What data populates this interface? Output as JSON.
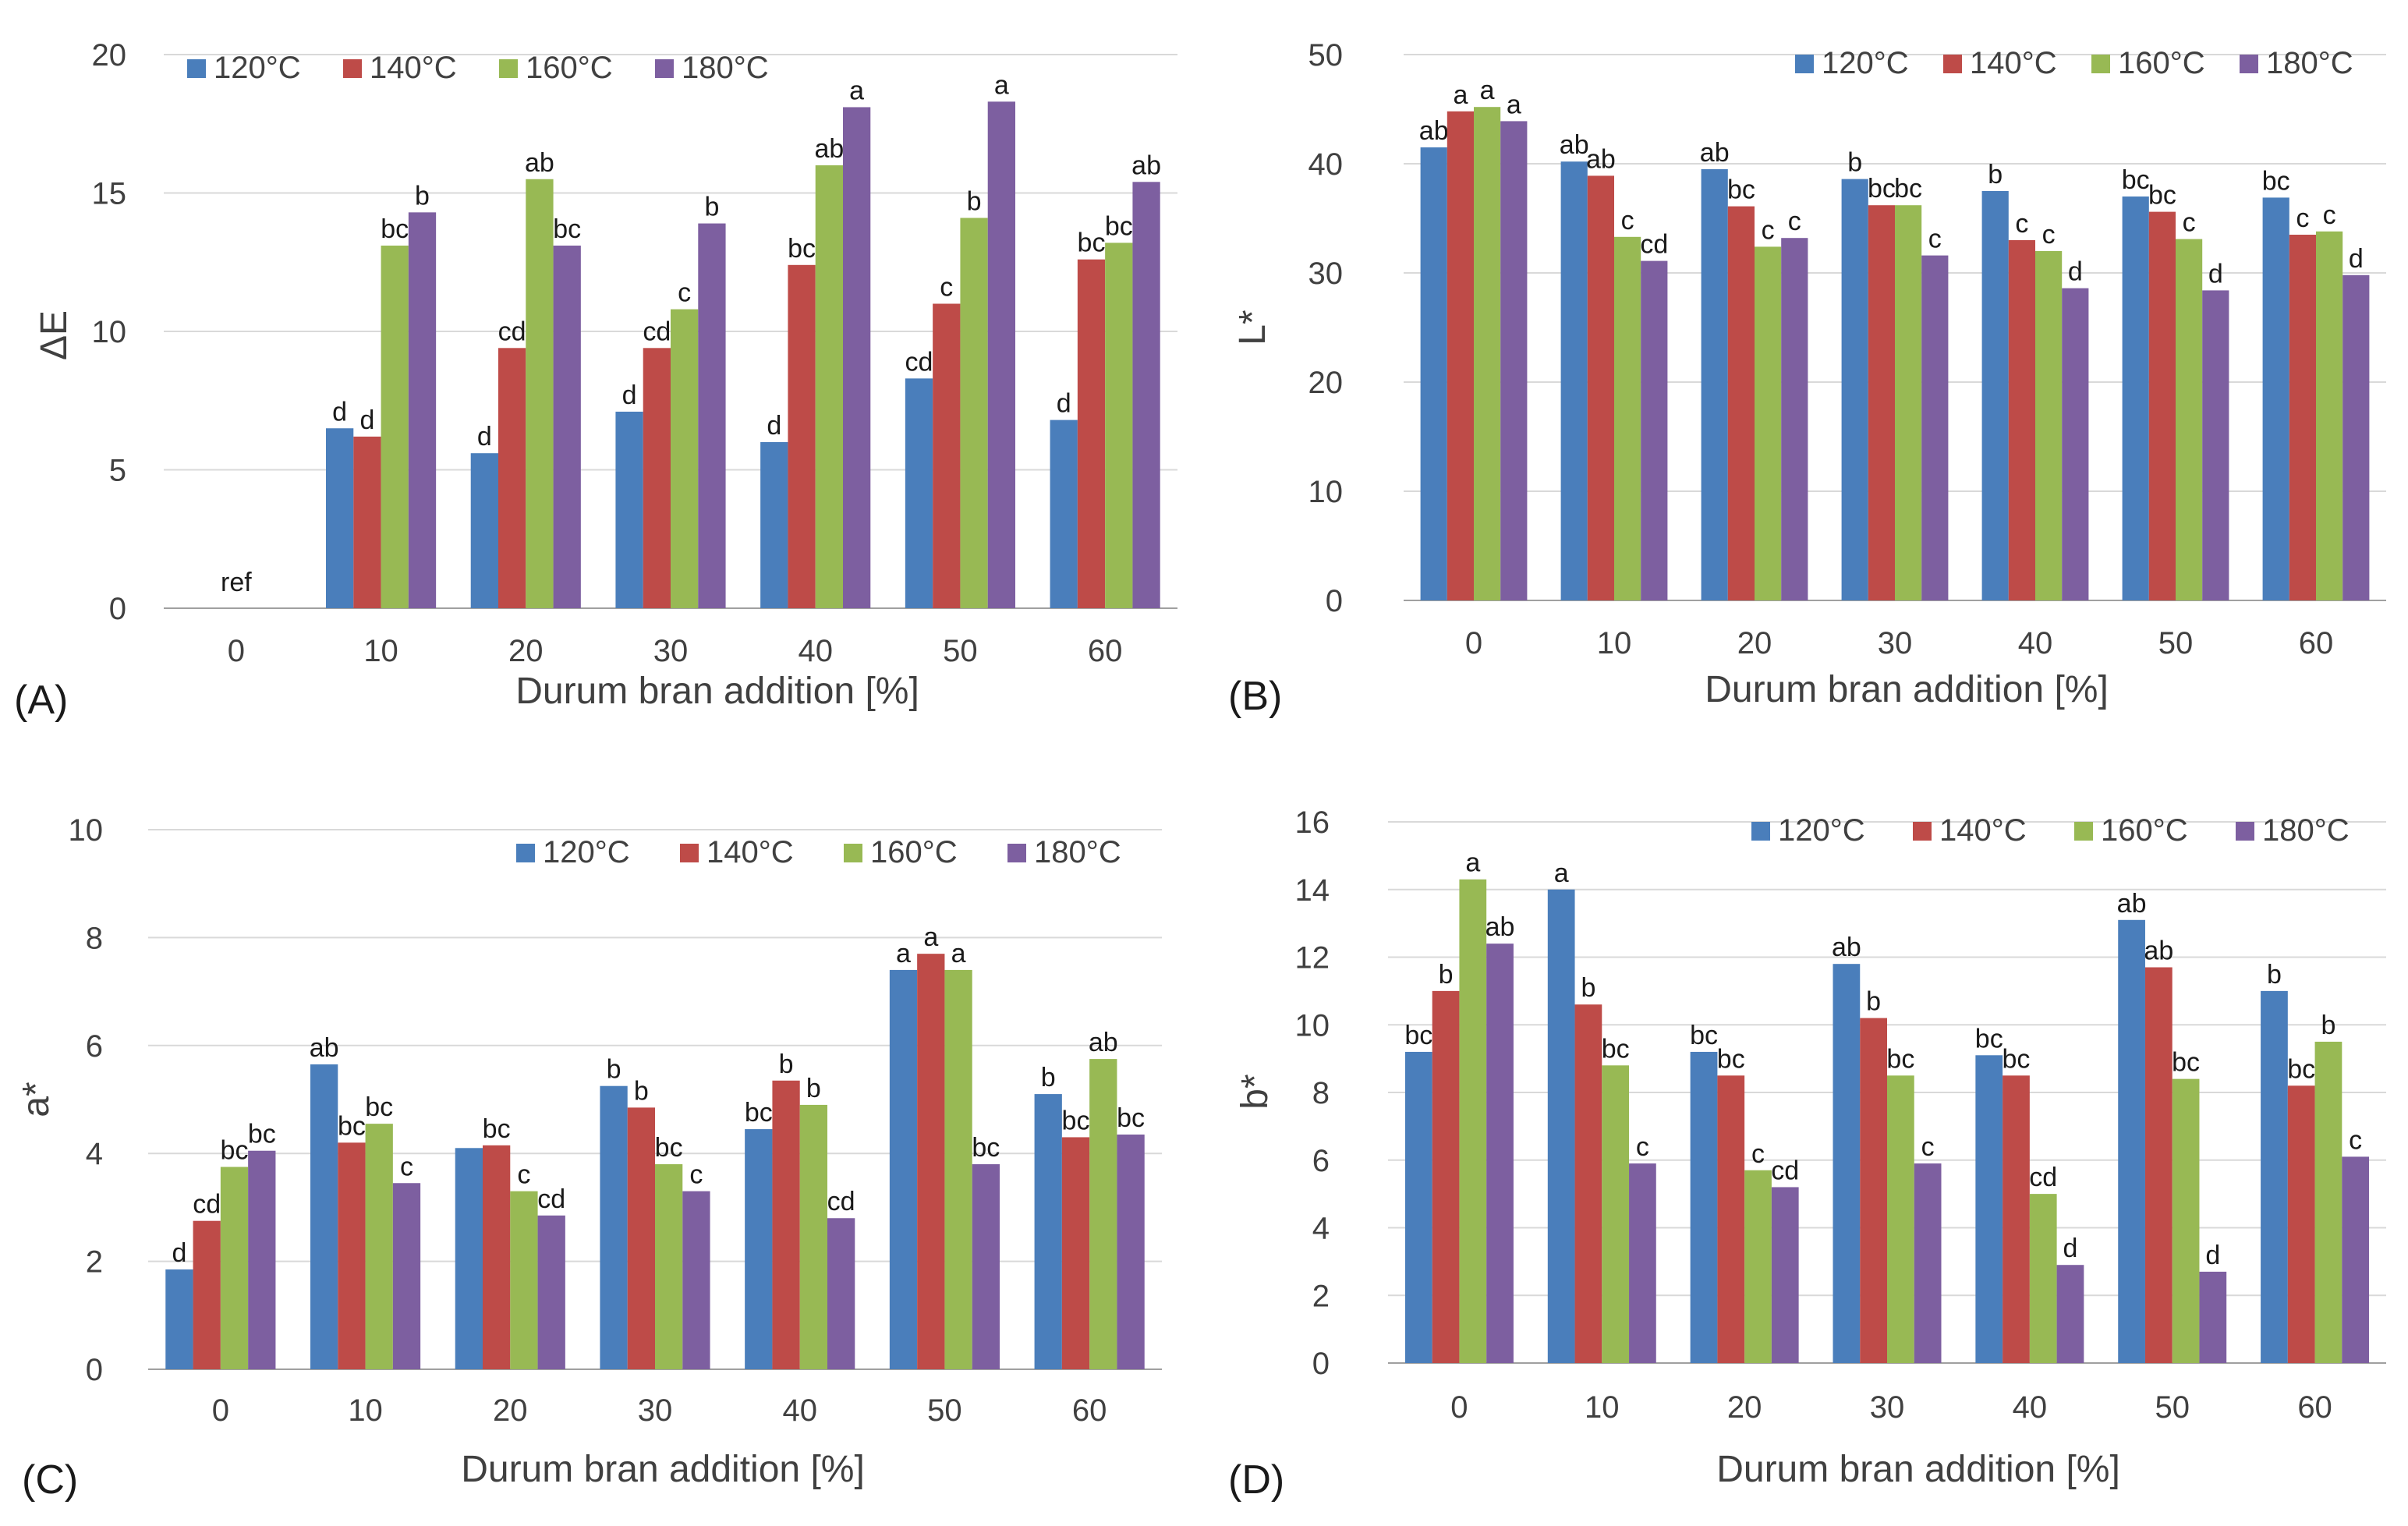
{
  "series_colors": {
    "120°C": "#4a7ebb",
    "140°C": "#be4b48",
    "160°C": "#98b954",
    "180°C": "#7d5fa0"
  },
  "chart_data": [
    {
      "type": "bar",
      "panel_label": "(A)",
      "categories": [
        "0",
        "10",
        "20",
        "30",
        "40",
        "50",
        "60"
      ],
      "xlabel": "Durum bran addition [%]",
      "ylabel": "ΔE",
      "ylim": [
        0,
        20
      ],
      "yticks": [
        0,
        5,
        10,
        15,
        20
      ],
      "grid": true,
      "legend_position": "top-left",
      "series": [
        {
          "name": "120°C",
          "values": [
            0,
            6.5,
            5.6,
            7.1,
            6.0,
            8.3,
            6.8
          ],
          "labels": [
            "",
            "d",
            "d",
            "d",
            "d",
            "cd",
            "d"
          ]
        },
        {
          "name": "140°C",
          "values": [
            0,
            6.2,
            9.4,
            9.4,
            12.4,
            11.0,
            12.6
          ],
          "labels": [
            "",
            "d",
            "cd",
            "cd",
            "bc",
            "c",
            "bc"
          ]
        },
        {
          "name": "160°C",
          "values": [
            0,
            13.1,
            15.5,
            10.8,
            16.0,
            14.1,
            13.2
          ],
          "labels": [
            "",
            "bc",
            "ab",
            "c",
            "ab",
            "b",
            "bc"
          ]
        },
        {
          "name": "180°C",
          "values": [
            0,
            14.3,
            13.1,
            13.9,
            18.1,
            18.3,
            15.4
          ],
          "labels": [
            "",
            "b",
            "bc",
            "b",
            "a",
            "a",
            "ab"
          ]
        }
      ],
      "annotations": [
        {
          "category": "0",
          "text": "ref"
        }
      ]
    },
    {
      "type": "bar",
      "panel_label": "(B)",
      "categories": [
        "0",
        "10",
        "20",
        "30",
        "40",
        "50",
        "60"
      ],
      "xlabel": "Durum bran addition [%]",
      "ylabel": "L*",
      "ylim": [
        0,
        50
      ],
      "yticks": [
        0,
        10,
        20,
        30,
        40,
        50
      ],
      "grid": true,
      "legend_position": "top-right",
      "series": [
        {
          "name": "120°C",
          "values": [
            41.5,
            40.2,
            39.5,
            38.6,
            37.5,
            37.0,
            36.9
          ],
          "labels": [
            "ab",
            "ab",
            "ab",
            "b",
            "b",
            "bc",
            "bc"
          ]
        },
        {
          "name": "140°C",
          "values": [
            44.8,
            38.9,
            36.1,
            36.2,
            33.0,
            35.6,
            33.5
          ],
          "labels": [
            "a",
            "ab",
            "bc",
            "bc",
            "c",
            "bc",
            "c"
          ]
        },
        {
          "name": "160°C",
          "values": [
            45.2,
            33.3,
            32.4,
            36.2,
            32.0,
            33.1,
            33.8
          ],
          "labels": [
            "a",
            "c",
            "c",
            "bc",
            "c",
            "c",
            "c"
          ]
        },
        {
          "name": "180°C",
          "values": [
            43.9,
            31.1,
            33.2,
            31.6,
            28.6,
            28.4,
            29.8
          ],
          "labels": [
            "a",
            "cd",
            "c",
            "c",
            "d",
            "d",
            "d"
          ]
        }
      ]
    },
    {
      "type": "bar",
      "panel_label": "(C)",
      "categories": [
        "0",
        "10",
        "20",
        "30",
        "40",
        "50",
        "60"
      ],
      "xlabel": "Durum bran addition [%]",
      "ylabel": "a*",
      "ylim": [
        0,
        10
      ],
      "yticks": [
        0,
        2,
        4,
        6,
        8,
        10
      ],
      "grid": true,
      "legend_position": "top-right",
      "series": [
        {
          "name": "120°C",
          "values": [
            1.85,
            5.65,
            4.1,
            5.25,
            4.45,
            7.4,
            5.1
          ],
          "labels": [
            "d",
            "ab",
            "",
            "b",
            "bc",
            "a",
            "b"
          ]
        },
        {
          "name": "140°C",
          "values": [
            2.75,
            4.2,
            4.15,
            4.85,
            5.35,
            7.7,
            4.3
          ],
          "labels": [
            "cd",
            "bc",
            "bc",
            "b",
            "b",
            "a",
            "bc"
          ]
        },
        {
          "name": "160°C",
          "values": [
            3.75,
            4.55,
            3.3,
            3.8,
            4.9,
            7.4,
            5.75
          ],
          "labels": [
            "bc",
            "bc",
            "c",
            "bc",
            "b",
            "a",
            "ab"
          ]
        },
        {
          "name": "180°C",
          "values": [
            4.05,
            3.45,
            2.85,
            3.3,
            2.8,
            3.8,
            4.35
          ],
          "labels": [
            "bc",
            "c",
            "cd",
            "c",
            "cd",
            "bc",
            "bc"
          ]
        }
      ]
    },
    {
      "type": "bar",
      "panel_label": "(D)",
      "categories": [
        "0",
        "10",
        "20",
        "30",
        "40",
        "50",
        "60"
      ],
      "xlabel": "Durum bran addition [%]",
      "ylabel": "b*",
      "ylim": [
        0,
        16
      ],
      "yticks": [
        0,
        2,
        4,
        6,
        8,
        10,
        12,
        14,
        16
      ],
      "grid": true,
      "legend_position": "top-right",
      "series": [
        {
          "name": "120°C",
          "values": [
            9.2,
            14.0,
            9.2,
            11.8,
            9.1,
            13.1,
            11.0
          ],
          "labels": [
            "bc",
            "a",
            "bc",
            "ab",
            "bc",
            "ab",
            "b"
          ]
        },
        {
          "name": "140°C",
          "values": [
            11.0,
            10.6,
            8.5,
            10.2,
            8.5,
            11.7,
            8.2
          ],
          "labels": [
            "b",
            "b",
            "bc",
            "b",
            "bc",
            "ab",
            "bc"
          ]
        },
        {
          "name": "160°C",
          "values": [
            14.3,
            8.8,
            5.7,
            8.5,
            5.0,
            8.4,
            9.5
          ],
          "labels": [
            "a",
            "bc",
            "c",
            "bc",
            "cd",
            "bc",
            "b"
          ]
        },
        {
          "name": "180°C",
          "values": [
            12.4,
            5.9,
            5.2,
            5.9,
            2.9,
            2.7,
            6.1
          ],
          "labels": [
            "ab",
            "c",
            "cd",
            "c",
            "d",
            "d",
            "c"
          ]
        }
      ]
    }
  ]
}
